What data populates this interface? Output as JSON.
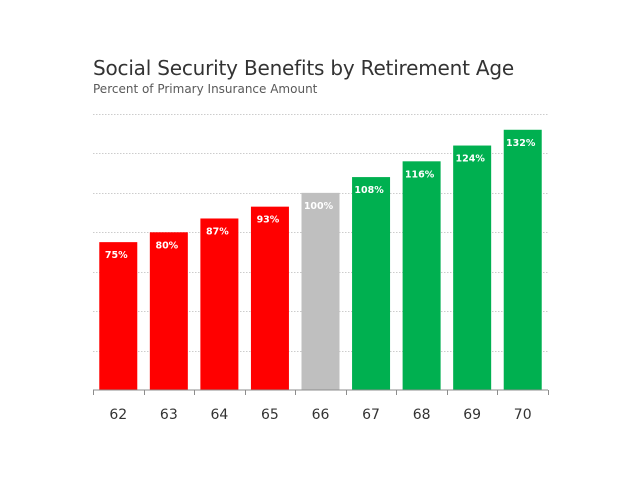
{
  "chart_data": {
    "type": "bar",
    "title": "Social Security Benefits by Retirement Age",
    "subtitle": "Percent of Primary Insurance Amount",
    "categories": [
      "62",
      "63",
      "64",
      "65",
      "66",
      "67",
      "68",
      "69",
      "70"
    ],
    "values": [
      75,
      80,
      87,
      93,
      100,
      108,
      116,
      124,
      132
    ],
    "data_labels": [
      "75%",
      "80%",
      "87%",
      "93%",
      "100%",
      "108%",
      "116%",
      "124%",
      "132%"
    ],
    "bar_colors": [
      "#ff0000",
      "#ff0000",
      "#ff0000",
      "#ff0000",
      "#bfbfbf",
      "#00b050",
      "#00b050",
      "#00b050",
      "#00b050"
    ],
    "xlabel": "",
    "ylabel": "",
    "ylim": [
      0,
      140
    ],
    "gridlines": true,
    "gridline_step": 20,
    "legend": "none"
  }
}
